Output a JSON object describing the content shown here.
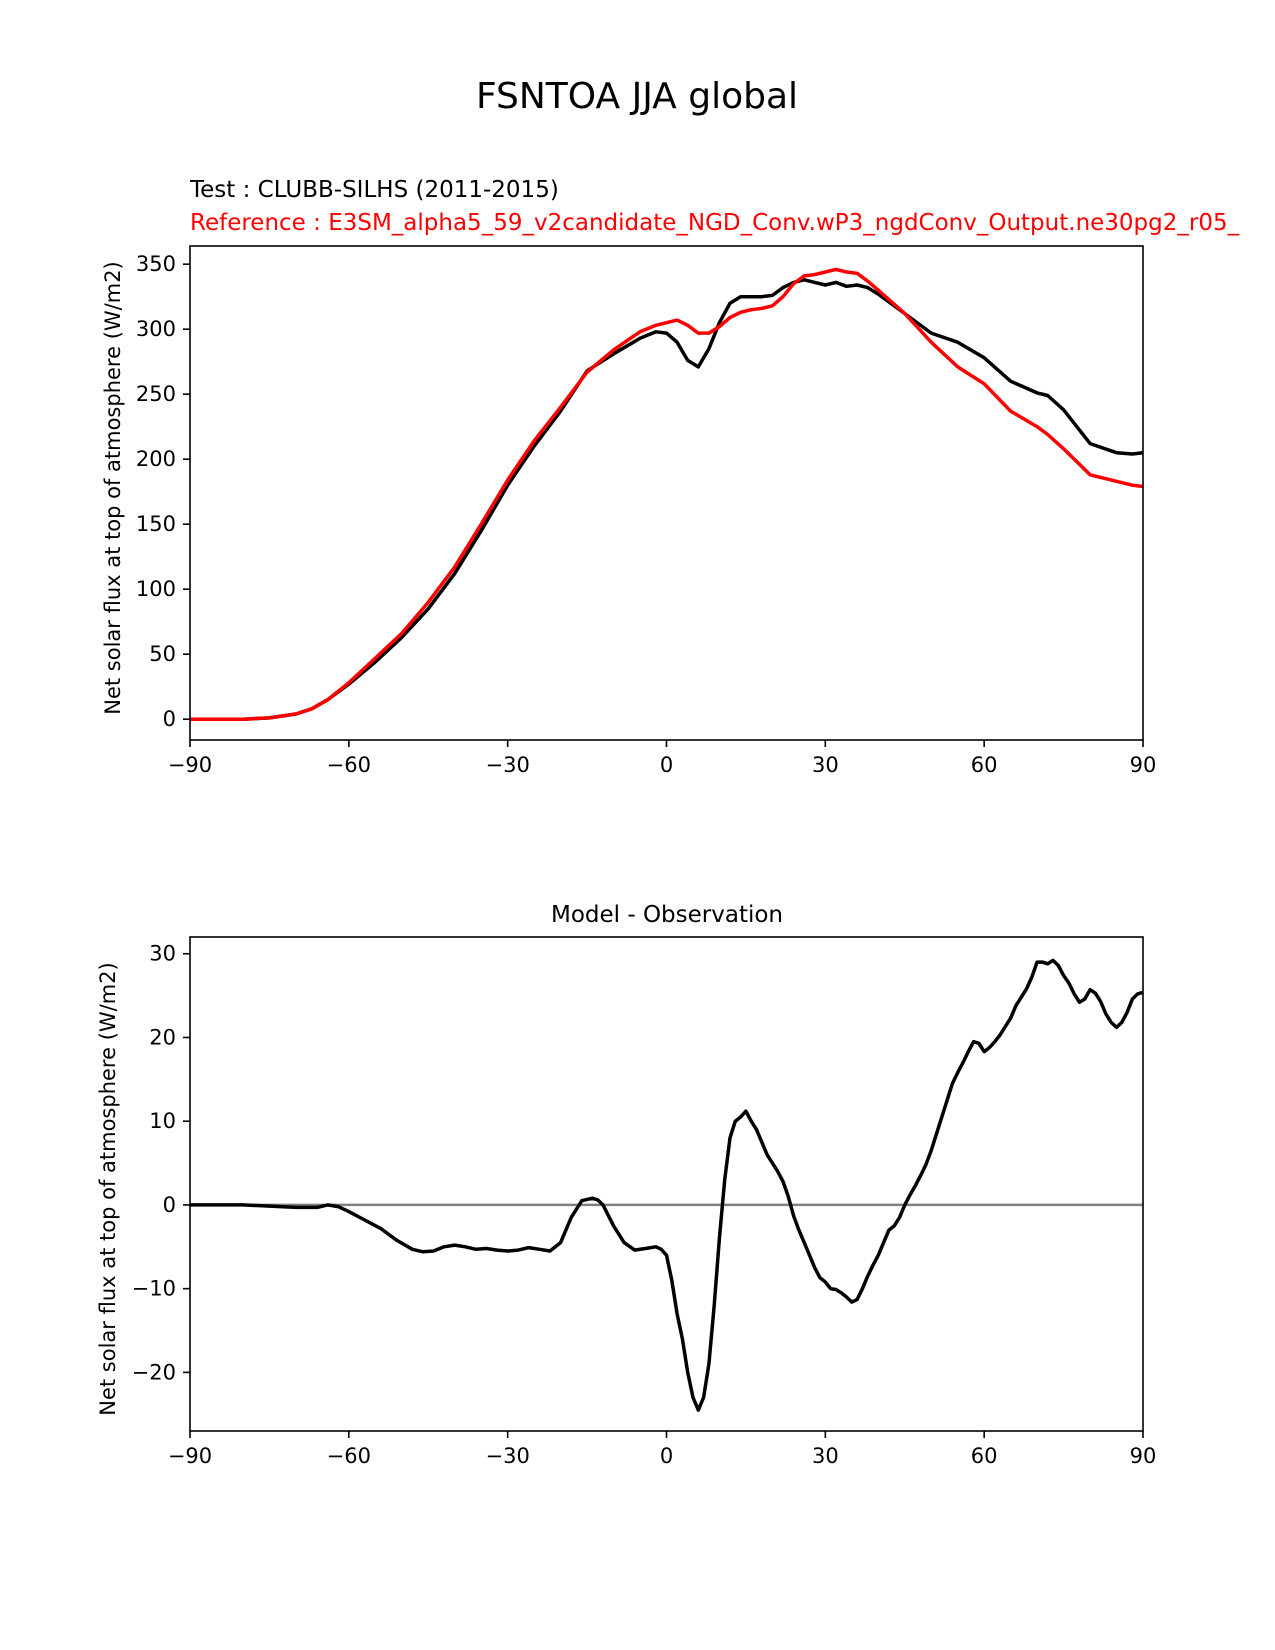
{
  "figure": {
    "title": "FSNTOA JJA global"
  },
  "colors": {
    "test": "#000000",
    "reference": "#ff0000",
    "zero_line": "#808080"
  },
  "chart_data": [
    {
      "type": "line",
      "subtitle_test": "Test : CLUBB-SILHS (2011-2015)",
      "subtitle_reference": "Reference : E3SM_alpha5_59_v2candidate_NGD_Conv.wP3_ngdConv_Output.ne30pg2_r05_",
      "xlabel": "",
      "ylabel": "Net solar flux at top of atmosphere (W/m2)",
      "xlim": [
        -90,
        90
      ],
      "ylim": [
        -16,
        364
      ],
      "xticks": [
        -90,
        -60,
        -30,
        0,
        30,
        60,
        90
      ],
      "xtick_labels": [
        "−90",
        "−60",
        "−30",
        "0",
        "30",
        "60",
        "90"
      ],
      "yticks": [
        0,
        50,
        100,
        150,
        200,
        250,
        300,
        350
      ],
      "ytick_labels": [
        "0",
        "50",
        "100",
        "150",
        "200",
        "250",
        "300",
        "350"
      ],
      "series": [
        {
          "name": "Test",
          "color": "test",
          "x": [
            -90,
            -85,
            -80,
            -75,
            -70,
            -67,
            -64,
            -60,
            -55,
            -50,
            -45,
            -40,
            -35,
            -30,
            -25,
            -20,
            -15,
            -10,
            -5,
            -2,
            0,
            2,
            4,
            6,
            8,
            10,
            12,
            14,
            16,
            18,
            20,
            22,
            24,
            26,
            28,
            30,
            32,
            34,
            36,
            38,
            40,
            45,
            50,
            55,
            60,
            65,
            70,
            72,
            75,
            80,
            85,
            88,
            90
          ],
          "y": [
            0,
            0,
            0,
            1,
            4,
            8,
            15,
            27,
            44,
            63,
            85,
            112,
            145,
            180,
            210,
            237,
            268,
            281,
            293,
            298,
            297,
            290,
            276,
            271,
            285,
            305,
            320,
            325,
            325,
            325,
            326,
            332,
            336,
            338,
            336,
            334,
            336,
            333,
            334,
            332,
            327,
            312,
            297,
            290,
            278,
            260,
            251,
            249,
            238,
            212,
            205,
            204,
            205
          ]
        },
        {
          "name": "Reference",
          "color": "reference",
          "x": [
            -90,
            -85,
            -80,
            -75,
            -70,
            -67,
            -64,
            -60,
            -55,
            -50,
            -45,
            -40,
            -35,
            -30,
            -25,
            -20,
            -15,
            -10,
            -5,
            -2,
            0,
            2,
            4,
            6,
            8,
            10,
            12,
            14,
            16,
            18,
            20,
            22,
            24,
            26,
            28,
            30,
            32,
            34,
            36,
            38,
            40,
            45,
            50,
            55,
            60,
            65,
            70,
            72,
            75,
            80,
            85,
            88,
            90
          ],
          "y": [
            0,
            0,
            0,
            1,
            4,
            8,
            15,
            28,
            47,
            66,
            90,
            117,
            150,
            184,
            214,
            240,
            267,
            284,
            298,
            303,
            305,
            307,
            303,
            297,
            297,
            302,
            309,
            313,
            315,
            316,
            318,
            325,
            335,
            341,
            342,
            344,
            346,
            344,
            343,
            337,
            330,
            312,
            290,
            271,
            258,
            237,
            225,
            219,
            208,
            188,
            183,
            180,
            179
          ]
        }
      ]
    },
    {
      "type": "line",
      "title": "Model - Observation",
      "xlabel": "",
      "ylabel": "Net solar flux at top of atmosphere (W/m2)",
      "xlim": [
        -90,
        90
      ],
      "ylim": [
        -27,
        32
      ],
      "xticks": [
        -90,
        -60,
        -30,
        0,
        30,
        60,
        90
      ],
      "xtick_labels": [
        "−90",
        "−60",
        "−30",
        "0",
        "30",
        "60",
        "90"
      ],
      "yticks": [
        -20,
        -10,
        0,
        10,
        20,
        30
      ],
      "ytick_labels": [
        "−20",
        "−10",
        "0",
        "10",
        "20",
        "30"
      ],
      "reference_line": {
        "y": 0,
        "color": "zero_line"
      },
      "series": [
        {
          "name": "Model - Observation",
          "color": "test",
          "x": [
            -90,
            -80,
            -70,
            -66,
            -64,
            -62,
            -60,
            -57,
            -54,
            -51,
            -48,
            -46,
            -44,
            -42,
            -40,
            -38,
            -36,
            -34,
            -32,
            -30,
            -28,
            -26,
            -24,
            -22,
            -20,
            -18,
            -16,
            -14,
            -13,
            -12,
            -10,
            -8,
            -6,
            -4,
            -2,
            -1,
            0,
            1,
            2,
            3,
            4,
            5,
            6,
            7,
            8,
            9,
            10,
            11,
            12,
            13,
            14,
            15,
            16,
            17,
            18,
            19,
            20,
            21,
            22,
            23,
            24,
            25,
            26,
            27,
            28,
            29,
            30,
            31,
            32,
            33,
            34,
            35,
            36,
            37,
            38,
            39,
            40,
            41,
            42,
            43,
            44,
            45,
            46,
            47,
            48,
            49,
            50,
            51,
            52,
            53,
            54,
            55,
            56,
            57,
            58,
            59,
            60,
            61,
            62,
            63,
            64,
            65,
            66,
            67,
            68,
            69,
            70,
            71,
            72,
            73,
            74,
            75,
            76,
            77,
            78,
            79,
            80,
            81,
            82,
            83,
            84,
            85,
            86,
            87,
            88,
            89,
            90
          ],
          "y": [
            0,
            0,
            -0.3,
            -0.3,
            0,
            -0.2,
            -0.8,
            -1.8,
            -2.8,
            -4.2,
            -5.3,
            -5.6,
            -5.5,
            -5.0,
            -4.8,
            -5.0,
            -5.3,
            -5.2,
            -5.4,
            -5.5,
            -5.4,
            -5.1,
            -5.3,
            -5.5,
            -4.5,
            -1.5,
            0.5,
            0.8,
            0.6,
            0,
            -2.5,
            -4.5,
            -5.4,
            -5.2,
            -5.0,
            -5.3,
            -6,
            -9,
            -13,
            -16,
            -20,
            -23,
            -24.5,
            -23,
            -19,
            -12,
            -4,
            3,
            8,
            10,
            10.5,
            11.2,
            10,
            9,
            7.5,
            6,
            5,
            4,
            2.8,
            1,
            -1.3,
            -3,
            -4.5,
            -6,
            -7.5,
            -8.7,
            -9.2,
            -10,
            -10.1,
            -10.5,
            -11,
            -11.6,
            -11.3,
            -10,
            -8.5,
            -7.2,
            -6,
            -4.5,
            -3,
            -2.5,
            -1.5,
            0,
            1.2,
            2.3,
            3.5,
            4.8,
            6.5,
            8.5,
            10.5,
            12.5,
            14.5,
            15.8,
            17,
            18.3,
            19.5,
            19.3,
            18.3,
            18.8,
            19.5,
            20.3,
            21.3,
            22.3,
            23.8,
            24.8,
            25.8,
            27.2,
            29,
            29,
            28.8,
            29.2,
            28.6,
            27.4,
            26.5,
            25.2,
            24.2,
            24.6,
            25.7,
            25.3,
            24.3,
            22.8,
            21.8,
            21.2,
            21.8,
            23,
            24.6,
            25.2,
            25.4
          ]
        }
      ]
    }
  ]
}
